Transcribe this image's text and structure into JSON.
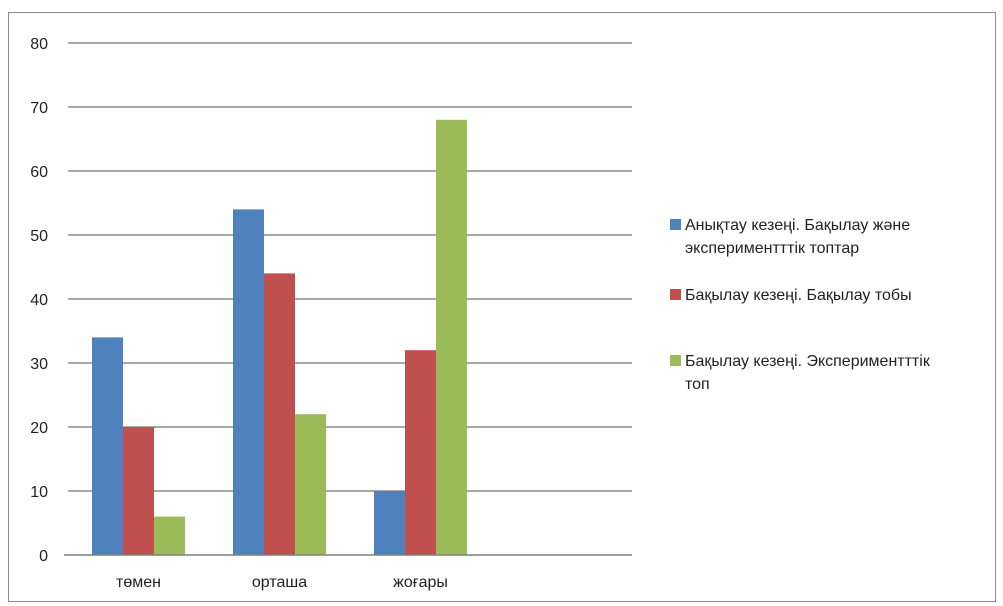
{
  "chart_data": {
    "type": "bar",
    "categories": [
      "төмен",
      "орташа",
      "жоғары"
    ],
    "series": [
      {
        "name": "Анықтау кезеңі. Бақылау және экспериментттік топтар",
        "legend_lines": [
          "Анықтау кезеңі. Бақылау және",
          "экспериментттік топтар"
        ],
        "color": "#4F81BD",
        "values": [
          34,
          54,
          10
        ]
      },
      {
        "name": "Бақылау кезеңі. Бақылау тобы",
        "legend_lines": [
          "Бақылау кезеңі. Бақылау тобы"
        ],
        "color": "#C0504D",
        "values": [
          20,
          44,
          32
        ]
      },
      {
        "name": "Бақылау кезеңі. Экспериментттік топ",
        "legend_lines": [
          "Бақылау кезеңі. Экспериментттік",
          "топ"
        ],
        "color": "#9BBB59",
        "values": [
          6,
          22,
          68
        ]
      }
    ],
    "yticks": [
      0,
      10,
      20,
      30,
      40,
      50,
      60,
      70,
      80
    ],
    "ylim": [
      0,
      80
    ],
    "grid": true,
    "legend_position": "right"
  }
}
